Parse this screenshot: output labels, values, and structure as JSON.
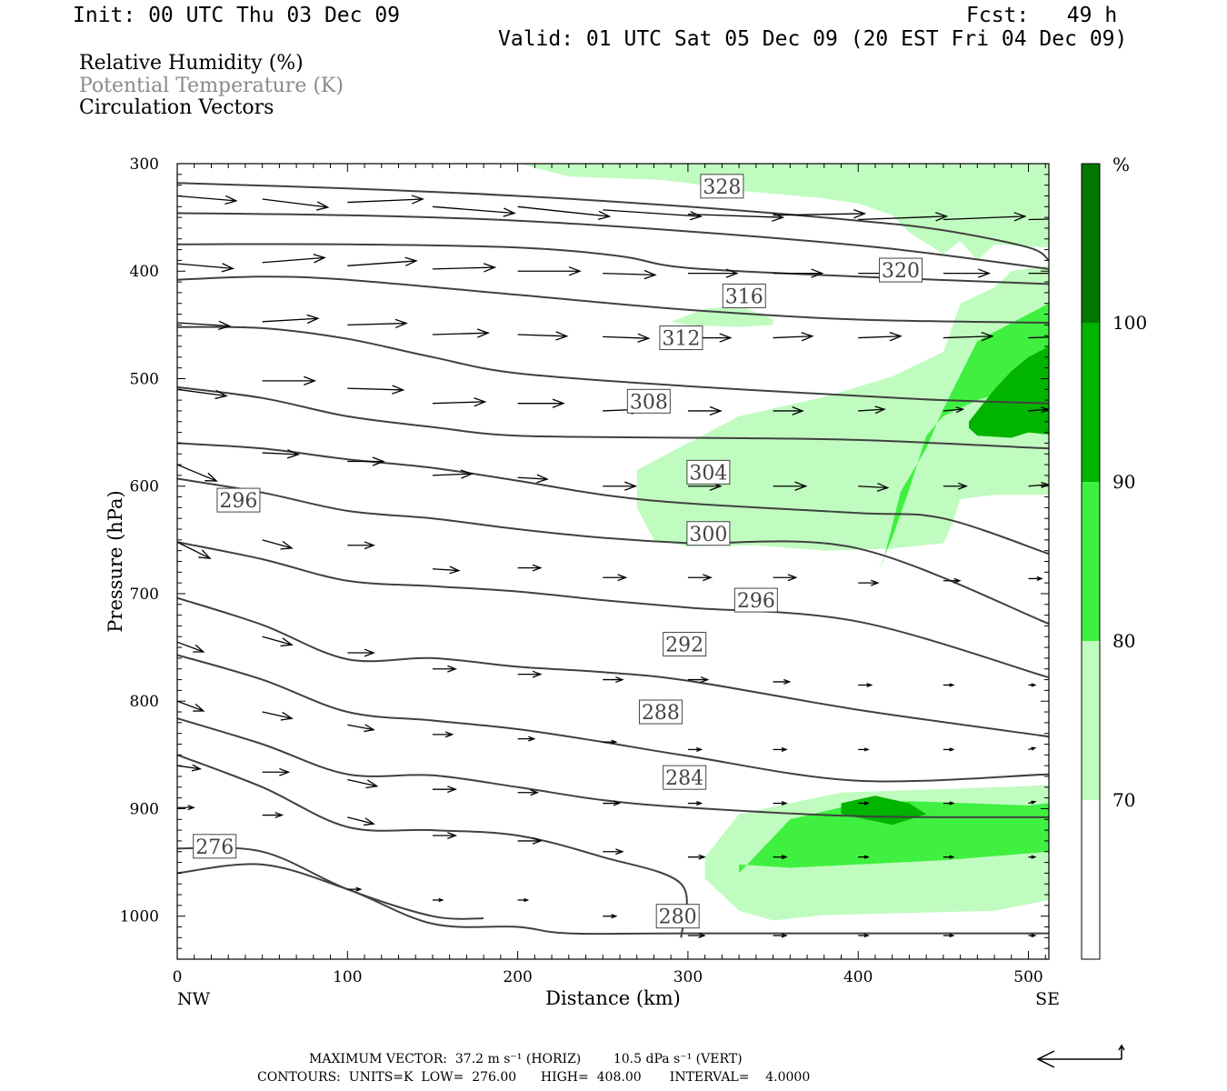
{
  "header": {
    "init": "Init: 00 UTC Thu 03 Dec 09",
    "fcst": "Fcst:   49 h",
    "valid": "Valid: 01 UTC Sat 05 Dec 09 (20 EST Fri 04 Dec 09)"
  },
  "legend": {
    "rh": "Relative Humidity (%)",
    "theta": "Potential Temperature (K)",
    "vectors": "Circulation Vectors"
  },
  "footer": {
    "line1": "MAXIMUM VECTOR:  37.2 m s⁻¹ (HORIZ)        10.5 dPa s⁻¹ (VERT)",
    "line2": "CONTOURS:  UNITS=K  LOW=  276.00      HIGH=  408.00       INTERVAL=    4.0000"
  },
  "colors": {
    "rh70": "#c0fcc0",
    "rh80": "#40f040",
    "rh90": "#00b400",
    "rh100": "#007800",
    "contour": "#404040"
  },
  "chart_data": {
    "type": "contour-cross-section",
    "xlabel": "Distance (km)",
    "ylabel": "Pressure (hPa)",
    "x_left_label": "NW",
    "x_right_label": "SE",
    "xlim": [
      0,
      512
    ],
    "ylim": [
      1040,
      300
    ],
    "x_ticks": [
      0,
      100,
      200,
      300,
      400,
      500
    ],
    "y_ticks": [
      300,
      400,
      500,
      600,
      700,
      800,
      900,
      1000
    ],
    "colorbar": {
      "unit": "%",
      "levels": [
        70,
        80,
        90,
        100
      ]
    },
    "contour_labels": [
      {
        "value": "328",
        "x": 320,
        "y": 321
      },
      {
        "value": "320",
        "x": 425,
        "y": 399
      },
      {
        "value": "316",
        "x": 333,
        "y": 423
      },
      {
        "value": "312",
        "x": 296,
        "y": 462
      },
      {
        "value": "308",
        "x": 277,
        "y": 521
      },
      {
        "value": "304",
        "x": 312,
        "y": 587
      },
      {
        "value": "300",
        "x": 312,
        "y": 644
      },
      {
        "value": "296",
        "x": 36,
        "y": 613
      },
      {
        "value": "296",
        "x": 340,
        "y": 706
      },
      {
        "value": "292",
        "x": 298,
        "y": 747
      },
      {
        "value": "288",
        "x": 284,
        "y": 810
      },
      {
        "value": "284",
        "x": 298,
        "y": 871
      },
      {
        "value": "276",
        "x": 22,
        "y": 935
      },
      {
        "value": "280",
        "x": 294,
        "y": 1000
      }
    ],
    "isentropes": [
      {
        "x": [
          0,
          100,
          200,
          300,
          400,
          450,
          500,
          512
        ],
        "y": [
          318,
          323,
          330,
          340,
          353,
          362,
          378,
          390
        ]
      },
      {
        "x": [
          0,
          100,
          200,
          300,
          400,
          450,
          512
        ],
        "y": [
          346,
          348,
          353,
          363,
          376,
          385,
          398
        ]
      },
      {
        "x": [
          0,
          100,
          200,
          260,
          300,
          400,
          512
        ],
        "y": [
          375,
          375,
          378,
          386,
          397,
          405,
          412
        ]
      },
      {
        "x": [
          0,
          50,
          100,
          200,
          300,
          400,
          512
        ],
        "y": [
          408,
          405,
          408,
          422,
          436,
          445,
          448
        ]
      },
      {
        "x": [
          0,
          50,
          100,
          150,
          200,
          300,
          400,
          450,
          512
        ],
        "y": [
          452,
          453,
          463,
          480,
          495,
          507,
          516,
          520,
          523
        ]
      },
      {
        "x": [
          0,
          50,
          100,
          150,
          200,
          300,
          400,
          512
        ],
        "y": [
          508,
          518,
          535,
          545,
          553,
          555,
          557,
          565
        ]
      },
      {
        "x": [
          0,
          50,
          100,
          150,
          200,
          250,
          300,
          400,
          450,
          512
        ],
        "y": [
          560,
          565,
          575,
          583,
          595,
          608,
          616,
          625,
          630,
          663
        ]
      },
      {
        "x": [
          0,
          50,
          100,
          150,
          200,
          250,
          300,
          400,
          512
        ],
        "y": [
          593,
          606,
          623,
          630,
          640,
          648,
          653,
          658,
          728
        ]
      },
      {
        "x": [
          0,
          50,
          100,
          150,
          200,
          250,
          300,
          400,
          512
        ],
        "y": [
          652,
          668,
          688,
          693,
          698,
          706,
          713,
          726,
          778
        ]
      },
      {
        "x": [
          0,
          50,
          100,
          150,
          200,
          250,
          300,
          400,
          512
        ],
        "y": [
          704,
          729,
          761,
          760,
          768,
          773,
          781,
          808,
          833
        ]
      },
      {
        "x": [
          0,
          50,
          100,
          150,
          200,
          250,
          300,
          400,
          512
        ],
        "y": [
          757,
          780,
          810,
          818,
          826,
          838,
          851,
          874,
          868
        ]
      },
      {
        "x": [
          0,
          50,
          100,
          150,
          200,
          250,
          300,
          400,
          512
        ],
        "y": [
          816,
          840,
          868,
          869,
          880,
          892,
          899,
          907,
          908
        ]
      },
      {
        "x": [
          0,
          50,
          100,
          150,
          200,
          250,
          296,
          296
        ],
        "y": [
          850,
          880,
          917,
          920,
          925,
          945,
          970,
          1020
        ]
      },
      {
        "x": [
          0,
          50,
          100,
          150,
          180
        ],
        "y": [
          937,
          940,
          975,
          1000,
          1002
        ]
      },
      {
        "x": [
          0,
          50,
          100,
          150,
          200,
          230,
          300,
          512
        ],
        "y": [
          960,
          952,
          975,
          1007,
          1010,
          1016,
          1016,
          1016
        ]
      }
    ],
    "rh_regions": [
      {
        "level": 70,
        "x": [
          201,
          230,
          283,
          300,
          330,
          378,
          400,
          420,
          430,
          440,
          450,
          460,
          470,
          480,
          512,
          512,
          470,
          460,
          452,
          440,
          400,
          350,
          300,
          270
        ],
        "y": [
          300,
          312,
          315,
          318,
          325,
          332,
          337,
          348,
          364,
          374,
          384,
          372,
          390,
          375,
          378,
          300,
          300,
          300,
          300,
          300,
          300,
          300,
          300,
          300
        ]
      },
      {
        "level": 70,
        "x": [
          270,
          300,
          330,
          380,
          420,
          450,
          460,
          480,
          490,
          512,
          512,
          500,
          480,
          470,
          460,
          455,
          450,
          420,
          380,
          340,
          300,
          280,
          270
        ],
        "y": [
          585,
          560,
          535,
          517,
          498,
          475,
          430,
          415,
          400,
          395,
          608,
          608,
          608,
          610,
          612,
          636,
          653,
          658,
          660,
          655,
          656,
          650,
          620
        ]
      },
      {
        "level": 70,
        "x": [
          290,
          310,
          330,
          340,
          350,
          350,
          330,
          300,
          290
        ],
        "y": [
          447,
          435,
          432,
          438,
          445,
          450,
          452,
          450,
          447
        ]
      },
      {
        "level": 70,
        "x": [
          310,
          330,
          390,
          500,
          512,
          512,
          480,
          380,
          350,
          330,
          310
        ],
        "y": [
          945,
          905,
          885,
          879,
          878,
          985,
          995,
          999,
          1004,
          995,
          965
        ]
      },
      {
        "level": 80,
        "x": [
          415,
          425,
          440,
          450,
          470,
          500,
          512,
          512,
          470,
          450,
          440,
          430,
          420,
          412
        ],
        "y": [
          668,
          605,
          565,
          528,
          465,
          440,
          430,
          500,
          520,
          535,
          553,
          603,
          648,
          678
        ]
      },
      {
        "level": 80,
        "x": [
          330,
          360,
          400,
          430,
          500,
          512,
          512,
          450,
          360,
          330
        ],
        "y": [
          960,
          910,
          895,
          893,
          897,
          895,
          940,
          948,
          955,
          952
        ]
      },
      {
        "level": 90,
        "x": [
          465,
          480,
          490,
          500,
          512,
          512,
          500,
          490,
          470,
          465
        ],
        "y": [
          540,
          510,
          493,
          480,
          470,
          552,
          550,
          555,
          553,
          546
        ]
      },
      {
        "level": 90,
        "x": [
          390,
          410,
          430,
          440,
          420,
          390
        ],
        "y": [
          895,
          888,
          895,
          905,
          915,
          905
        ]
      }
    ],
    "wind_vectors": [
      {
        "x": [
          0,
          50,
          100,
          150,
          200,
          250,
          300,
          350,
          400,
          450,
          500
        ],
        "y": [
          330,
          333,
          336,
          340,
          340,
          343,
          347,
          348,
          352,
          352,
          352
        ],
        "u": [
          36,
          40,
          46,
          50,
          56,
          60,
          58,
          56,
          54,
          50,
          46
        ],
        "v": [
          3,
          5,
          -2,
          4,
          6,
          4,
          2,
          -1,
          -2,
          -2,
          -1
        ]
      },
      {
        "x": [
          0,
          50,
          100,
          150,
          200,
          250,
          300,
          350,
          400,
          450,
          500
        ],
        "y": [
          393,
          392,
          395,
          398,
          400,
          402,
          402,
          402,
          402,
          402,
          402
        ],
        "u": [
          34,
          38,
          42,
          38,
          38,
          32,
          30,
          30,
          30,
          28,
          26
        ],
        "v": [
          3,
          -3,
          -3,
          -1,
          0,
          1,
          0,
          0,
          0,
          0,
          0
        ]
      },
      {
        "x": [
          0,
          50,
          100,
          150,
          200,
          250,
          300,
          350,
          400,
          450,
          500
        ],
        "y": [
          448,
          447,
          450,
          459,
          459,
          461,
          462,
          462,
          462,
          462,
          462
        ],
        "u": [
          32,
          34,
          36,
          34,
          30,
          28,
          26,
          24,
          26,
          30,
          32
        ],
        "v": [
          2,
          -2,
          -1,
          -1,
          1,
          1,
          0,
          -1,
          -1,
          -1,
          -1
        ]
      },
      {
        "x": [
          0,
          50,
          100,
          150,
          200,
          250,
          300,
          350,
          400,
          450,
          500
        ],
        "y": [
          510,
          502,
          509,
          523,
          523,
          530,
          530,
          530,
          530,
          530,
          530
        ],
        "u": [
          30,
          32,
          34,
          32,
          28,
          24,
          20,
          18,
          16,
          12,
          12
        ],
        "v": [
          4,
          0,
          1,
          -1,
          0,
          -1,
          0,
          0,
          -1,
          -1,
          -1
        ]
      },
      {
        "x": [
          0,
          50,
          100,
          150,
          200,
          250,
          300,
          350,
          400,
          450,
          500
        ],
        "y": [
          580,
          569,
          577,
          590,
          592,
          600,
          600,
          600,
          600,
          600,
          600
        ],
        "u": [
          24,
          22,
          22,
          24,
          18,
          20,
          20,
          20,
          18,
          14,
          12
        ],
        "v": [
          10,
          1,
          0,
          -1,
          1,
          0,
          0,
          0,
          1,
          0,
          -1
        ]
      },
      {
        "x": [
          0,
          50,
          100,
          150,
          200,
          250,
          300,
          350,
          400,
          450,
          500
        ],
        "y": [
          652,
          650,
          655,
          677,
          676,
          685,
          685,
          685,
          690,
          688,
          686
        ],
        "u": [
          20,
          18,
          16,
          16,
          14,
          14,
          14,
          14,
          12,
          10,
          8
        ],
        "v": [
          10,
          5,
          0,
          1,
          0,
          0,
          0,
          0,
          0,
          0,
          0
        ]
      },
      {
        "x": [
          0,
          50,
          100,
          150,
          200,
          250,
          300,
          350,
          400,
          450,
          500
        ],
        "y": [
          745,
          740,
          755,
          770,
          775,
          780,
          780,
          782,
          785,
          785,
          785
        ],
        "u": [
          16,
          18,
          16,
          14,
          14,
          12,
          12,
          10,
          8,
          6,
          4
        ],
        "v": [
          6,
          5,
          0,
          0,
          0,
          0,
          0,
          0,
          0,
          0,
          0
        ]
      },
      {
        "x": [
          0,
          50,
          100,
          150,
          200,
          250,
          300,
          350,
          400,
          450,
          500
        ],
        "y": [
          800,
          810,
          822,
          831,
          835,
          838,
          845,
          845,
          845,
          845,
          845
        ],
        "u": [
          16,
          18,
          16,
          12,
          10,
          8,
          8,
          8,
          6,
          6,
          4
        ],
        "v": [
          6,
          4,
          3,
          0,
          0,
          0,
          0,
          0,
          0,
          0,
          -1
        ]
      },
      {
        "x": [
          0,
          50,
          100,
          150,
          200,
          250,
          300,
          350,
          400,
          450,
          500
        ],
        "y": [
          860,
          866,
          873,
          882,
          885,
          895,
          895,
          895,
          895,
          895,
          895
        ],
        "u": [
          14,
          16,
          18,
          14,
          12,
          10,
          8,
          8,
          6,
          6,
          4
        ],
        "v": [
          2,
          0,
          4,
          0,
          0,
          0,
          0,
          0,
          0,
          0,
          -1
        ]
      },
      {
        "x": [
          0,
          50,
          100,
          150,
          200,
          250,
          300,
          350,
          400,
          450,
          500
        ],
        "y": [
          899,
          906,
          908,
          925,
          930,
          940,
          945,
          945,
          945,
          945,
          945
        ],
        "u": [
          10,
          12,
          16,
          14,
          14,
          12,
          10,
          8,
          6,
          6,
          4
        ],
        "v": [
          0,
          0,
          4,
          0,
          0,
          0,
          0,
          0,
          0,
          0,
          0
        ]
      },
      {
        "x": [
          100,
          150,
          200,
          250,
          300,
          350,
          400,
          450,
          500
        ],
        "y": [
          975,
          985,
          985,
          1000,
          1018,
          1018,
          1018,
          1018,
          1018
        ],
        "u": [
          8,
          6,
          6,
          8,
          10,
          8,
          6,
          6,
          4
        ],
        "v": [
          0,
          0,
          0,
          0,
          0,
          0,
          0,
          0,
          0
        ]
      }
    ]
  }
}
